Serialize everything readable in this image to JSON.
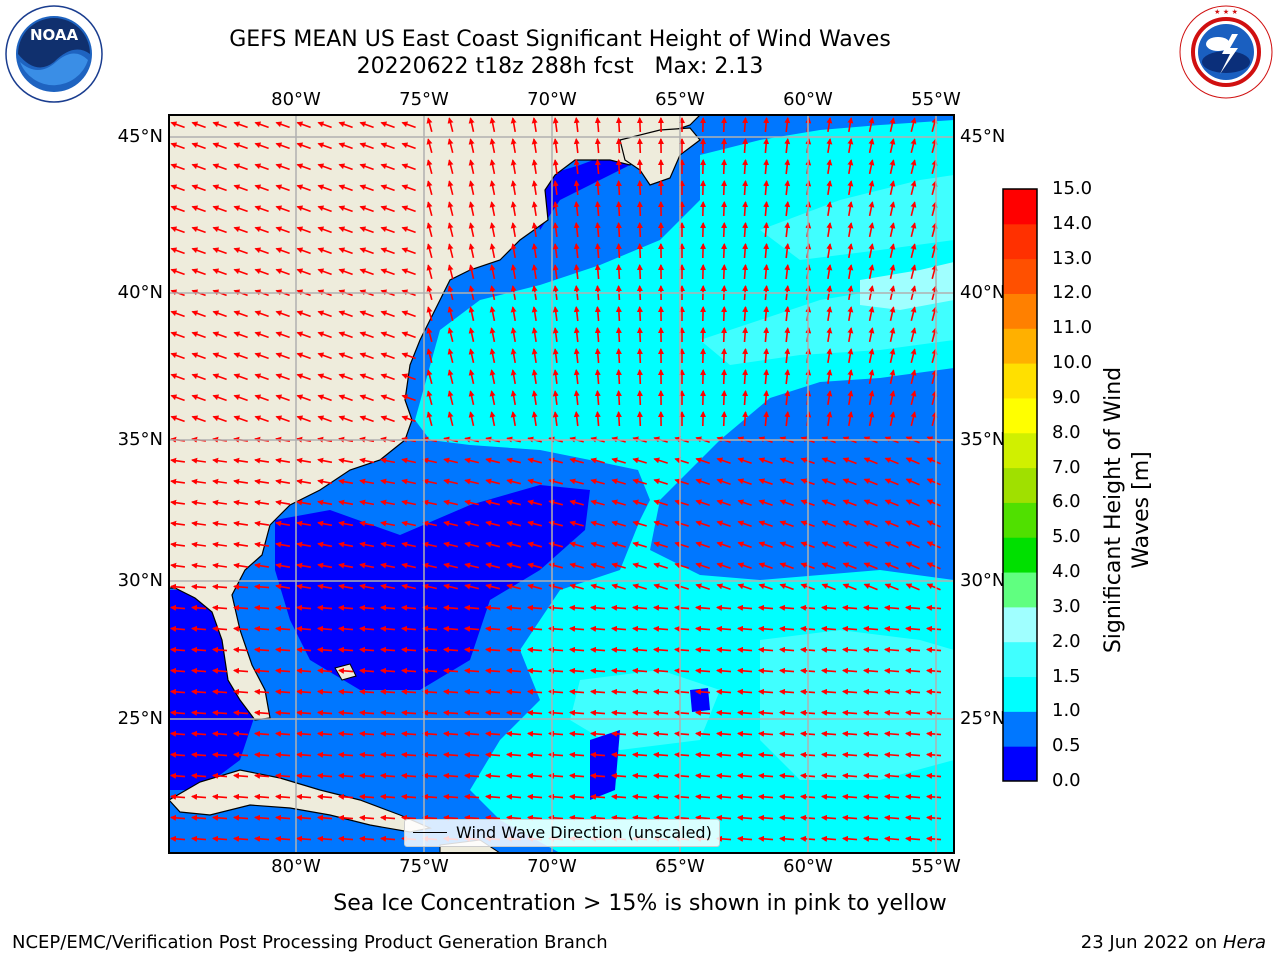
{
  "header": {
    "title_line1": "GEFS MEAN US East Coast Significant Height of Wind Waves",
    "title_line2": "20220622 t18z 288h fcst   Max: 2.13"
  },
  "logos": {
    "noaa_text": "NOAA",
    "noaa_ring_text": "NATIONAL OCEANIC AND ATMOSPHERIC ADMINISTRATION · U.S. DEPARTMENT OF COMMERCE",
    "nws_ring_text": "NATIONAL WEATHER SERVICE"
  },
  "map": {
    "lon_labels": [
      "80°W",
      "75°W",
      "70°W",
      "65°W",
      "60°W",
      "55°W"
    ],
    "lat_labels": [
      "45°N",
      "40°N",
      "35°N",
      "30°N",
      "25°N"
    ],
    "gridlines": true,
    "land_color": "#eeecdc",
    "arrow_color": "#ff0000",
    "legend_label": "Wind Wave Direction (unscaled)"
  },
  "colorbar": {
    "title": "Significant Height of Wind Waves [m]",
    "title_line1": "Significant Height of Wind",
    "title_line2": "Waves [m]",
    "ticks": [
      "0.0",
      "0.5",
      "1.0",
      "1.5",
      "2.0",
      "3.0",
      "4.0",
      "5.0",
      "6.0",
      "7.0",
      "8.0",
      "9.0",
      "10.0",
      "11.0",
      "12.0",
      "13.0",
      "14.0",
      "15.0"
    ],
    "colors": [
      "#0000ff",
      "#0077ff",
      "#00ffff",
      "#40ffff",
      "#a0ffff",
      "#60ff80",
      "#00e000",
      "#50e000",
      "#a0e000",
      "#d0f000",
      "#ffff00",
      "#ffe000",
      "#ffb000",
      "#ff8000",
      "#ff5000",
      "#ff3000",
      "#ff0000"
    ]
  },
  "footer": {
    "note": "Sea Ice Concentration > 15% is shown in pink to yellow",
    "credit_left": "NCEP/EMC/Verification Post Processing Product Generation Branch",
    "credit_date": "23 Jun 2022 on ",
    "credit_machine": "Hera"
  }
}
